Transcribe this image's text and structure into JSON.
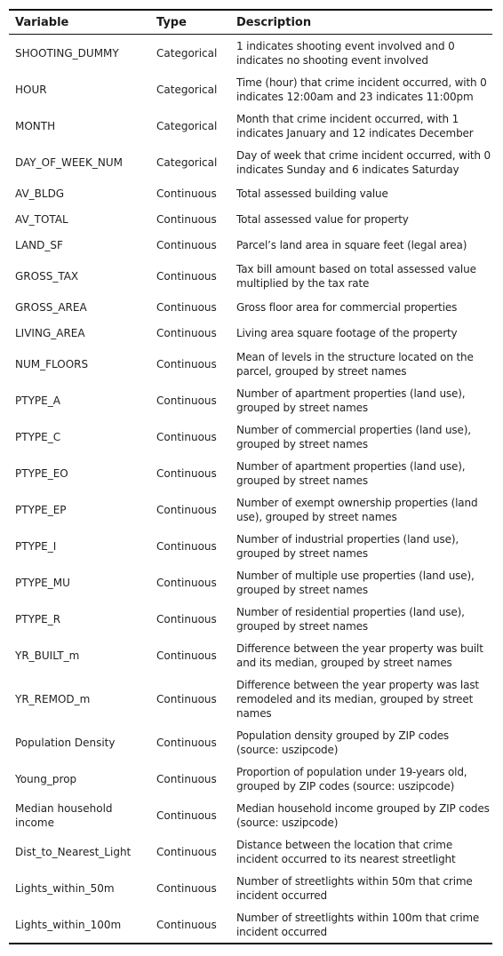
{
  "table": {
    "headers": {
      "variable": "Variable",
      "type": "Type",
      "description": "Description"
    },
    "rows": [
      {
        "variable": "SHOOTING_DUMMY",
        "type": "Categorical",
        "description": "1 indicates shooting event involved and 0 indicates no shooting event involved"
      },
      {
        "variable": "HOUR",
        "type": "Categorical",
        "description": "Time (hour) that crime incident occurred, with 0 indicates 12:00am and 23 indicates 11:00pm"
      },
      {
        "variable": "MONTH",
        "type": "Categorical",
        "description": "Month that crime incident occurred, with 1 indicates January and 12 indicates December"
      },
      {
        "variable": "DAY_OF_WEEK_NUM",
        "type": "Categorical",
        "description": "Day of week that crime incident occurred, with 0 indicates Sunday and 6 indicates Saturday"
      },
      {
        "variable": "AV_BLDG",
        "type": "Continuous",
        "description": "Total assessed building value"
      },
      {
        "variable": "AV_TOTAL",
        "type": "Continuous",
        "description": "Total assessed value for property"
      },
      {
        "variable": "LAND_SF",
        "type": "Continuous",
        "description": "Parcel’s land area in square feet (legal area)"
      },
      {
        "variable": "GROSS_TAX",
        "type": "Continuous",
        "description": "Tax bill amount based on total assessed value multiplied by the tax rate"
      },
      {
        "variable": "GROSS_AREA",
        "type": "Continuous",
        "description": "Gross floor area for commercial properties"
      },
      {
        "variable": "LIVING_AREA",
        "type": "Continuous",
        "description": "Living area square footage of the property"
      },
      {
        "variable": "NUM_FLOORS",
        "type": "Continuous",
        "description": "Mean of levels in the structure located on the parcel, grouped by street names"
      },
      {
        "variable": "PTYPE_A",
        "type": "Continuous",
        "description": "Number of apartment properties (land use), grouped by street names"
      },
      {
        "variable": "PTYPE_C",
        "type": "Continuous",
        "description": "Number of commercial properties (land use), grouped by street names"
      },
      {
        "variable": "PTYPE_EO",
        "type": "Continuous",
        "description": "Number of apartment properties (land use), grouped by street names"
      },
      {
        "variable": "PTYPE_EP",
        "type": "Continuous",
        "description": "Number of exempt ownership properties (land use), grouped by street names"
      },
      {
        "variable": "PTYPE_I",
        "type": "Continuous",
        "description": "Number of industrial properties (land use), grouped by street names"
      },
      {
        "variable": "PTYPE_MU",
        "type": "Continuous",
        "description": "Number of multiple use properties (land use), grouped by street names"
      },
      {
        "variable": "PTYPE_R",
        "type": "Continuous",
        "description": "Number of residential properties (land use), grouped by street names"
      },
      {
        "variable": "YR_BUILT_m",
        "type": "Continuous",
        "description": "Difference between the year property was built and its median, grouped by street names"
      },
      {
        "variable": "YR_REMOD_m",
        "type": "Continuous",
        "description": "Difference between the year property was last remodeled and its median, grouped by street names"
      },
      {
        "variable": "Population Density",
        "type": "Continuous",
        "description": "Population density grouped by ZIP codes (source: uszipcode)"
      },
      {
        "variable": "Young_prop",
        "type": "Continuous",
        "description": "Proportion of population under 19-years old, grouped by ZIP codes (source: uszipcode)"
      },
      {
        "variable": "Median household income",
        "type": "Continuous",
        "description": "Median household income grouped by ZIP codes (source: uszipcode)"
      },
      {
        "variable": "Dist_to_Nearest_Light",
        "type": "Continuous",
        "description": "Distance between the location that crime incident occurred to its nearest streetlight"
      },
      {
        "variable": "Lights_within_50m",
        "type": "Continuous",
        "description": "Number of streetlights within 50m that crime incident occurred"
      },
      {
        "variable": "Lights_within_100m",
        "type": "Continuous",
        "description": "Number of streetlights within 100m that crime incident occurred"
      }
    ]
  }
}
